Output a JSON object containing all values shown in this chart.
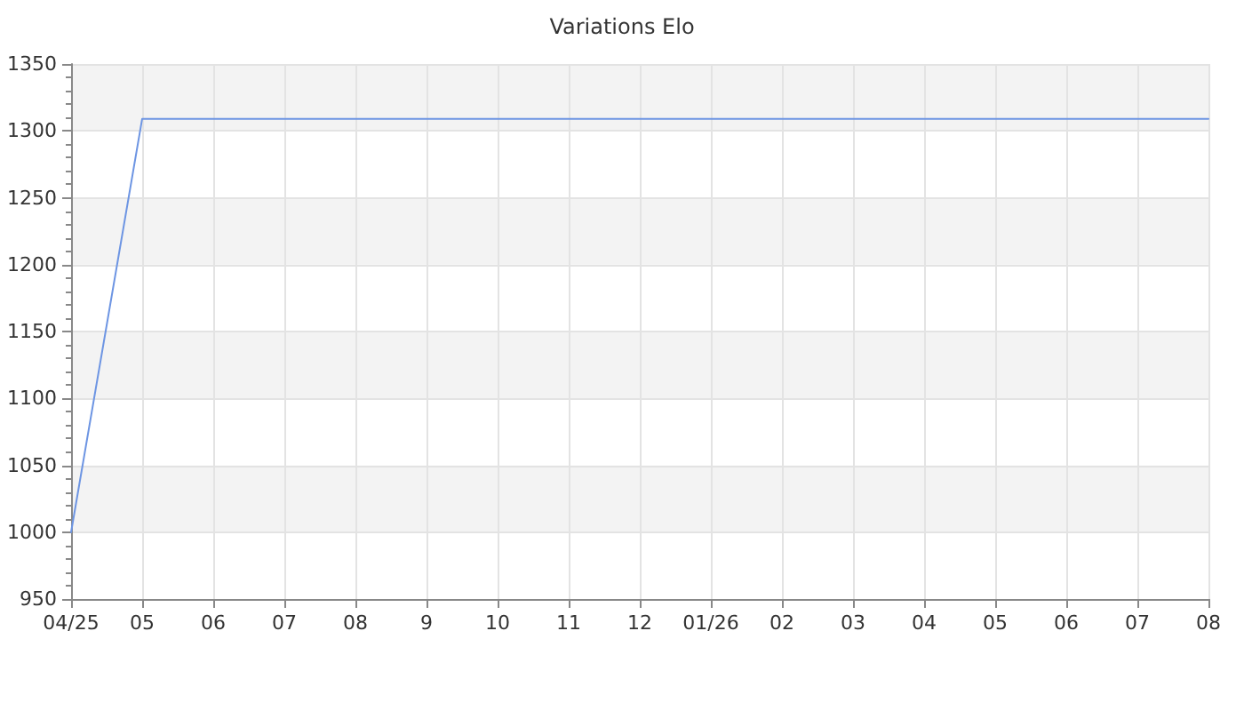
{
  "chart_data": {
    "type": "line",
    "title": "Variations Elo",
    "categories": [
      "04/25",
      "05",
      "06",
      "07",
      "08",
      "9",
      "10",
      "11",
      "12",
      "01/26",
      "02",
      "03",
      "04",
      "05",
      "06",
      "07",
      "08"
    ],
    "series": [
      {
        "color": "#6d95e3",
        "values": [
          1000,
          1309,
          1309,
          1309,
          1309,
          1309,
          1309,
          1309,
          1309,
          1309,
          1309,
          1309,
          1309,
          1309,
          1309,
          1309,
          1309
        ]
      }
    ],
    "ylim": [
      950,
      1350
    ],
    "yticks": [
      950,
      1000,
      1050,
      1100,
      1150,
      1200,
      1250,
      1300,
      1350
    ],
    "grid": true,
    "marker": "none",
    "line_style": "solid"
  }
}
